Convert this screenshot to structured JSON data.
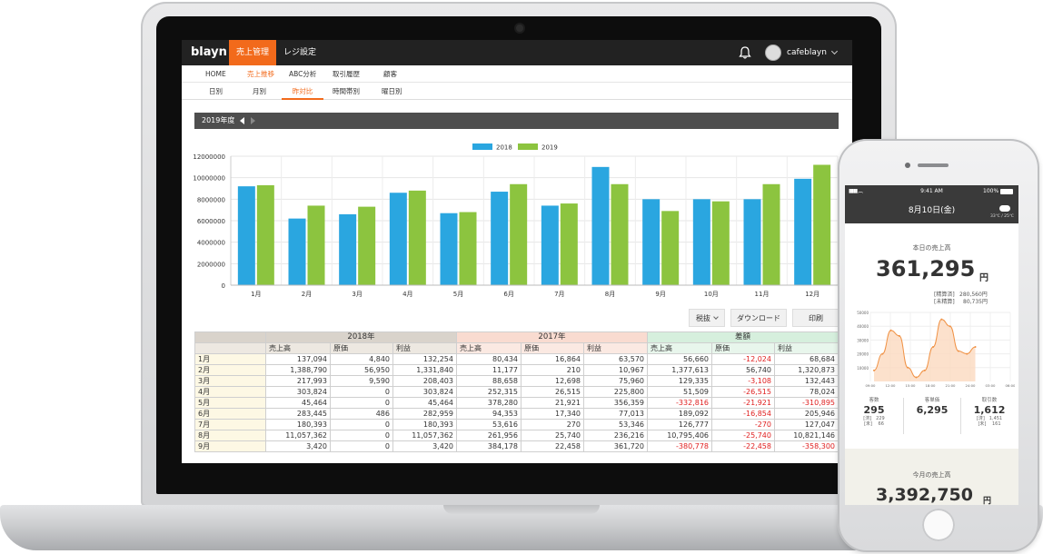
{
  "app": {
    "logo": "blayn",
    "top_tabs": [
      {
        "label": "売上管理",
        "active": true
      },
      {
        "label": "レジ設定",
        "active": false
      }
    ],
    "user_name": "cafeblayn"
  },
  "nav_primary": [
    {
      "label": "HOME"
    },
    {
      "label": "売上推移",
      "active": true
    },
    {
      "label": "ABC分析"
    },
    {
      "label": "取引履歴"
    },
    {
      "label": "顧客"
    }
  ],
  "nav_secondary": [
    {
      "label": "日別"
    },
    {
      "label": "月別"
    },
    {
      "label": "昨対比",
      "active": true
    },
    {
      "label": "時間帯別"
    },
    {
      "label": "曜日別"
    }
  ],
  "year_selector": {
    "label": "2019年度"
  },
  "chart_data": {
    "type": "bar",
    "categories": [
      "1月",
      "2月",
      "3月",
      "4月",
      "5月",
      "6月",
      "7月",
      "8月",
      "9月",
      "10月",
      "11月",
      "12月"
    ],
    "series": [
      {
        "name": "2018",
        "color": "#2aa6e0",
        "values": [
          9200000,
          6200000,
          6600000,
          8600000,
          6700000,
          8700000,
          7400000,
          11000000,
          8000000,
          8000000,
          8000000,
          9900000
        ]
      },
      {
        "name": "2019",
        "color": "#8cc43f",
        "values": [
          9300000,
          7400000,
          7300000,
          8800000,
          6800000,
          9400000,
          7600000,
          9400000,
          6900000,
          7800000,
          9400000,
          11200000
        ]
      }
    ],
    "ylim": [
      0,
      12000000
    ],
    "yticks": [
      "0",
      "2000000",
      "4000000",
      "6000000",
      "8000000",
      "10000000",
      "12000000"
    ],
    "grid": true,
    "legend": "top"
  },
  "buttons": {
    "tax": "税抜",
    "download": "ダウンロード",
    "print": "印刷"
  },
  "table": {
    "groups": [
      "2018年",
      "2017年",
      "差額"
    ],
    "subheaders": [
      "売上高",
      "原価",
      "利益"
    ],
    "rows": [
      {
        "month": "1月",
        "cells": [
          "137,094",
          "4,840",
          "132,254",
          "80,434",
          "16,864",
          "63,570",
          "56,660",
          "-12,024",
          "68,684"
        ]
      },
      {
        "month": "2月",
        "cells": [
          "1,388,790",
          "56,950",
          "1,331,840",
          "11,177",
          "210",
          "10,967",
          "1,377,613",
          "56,740",
          "1,320,873"
        ]
      },
      {
        "month": "3月",
        "cells": [
          "217,993",
          "9,590",
          "208,403",
          "88,658",
          "12,698",
          "75,960",
          "129,335",
          "-3,108",
          "132,443"
        ]
      },
      {
        "month": "4月",
        "cells": [
          "303,824",
          "0",
          "303,824",
          "252,315",
          "26,515",
          "225,800",
          "51,509",
          "-26,515",
          "78,024"
        ]
      },
      {
        "month": "5月",
        "cells": [
          "45,464",
          "0",
          "45,464",
          "378,280",
          "21,921",
          "356,359",
          "-332,816",
          "-21,921",
          "-310,895"
        ]
      },
      {
        "month": "6月",
        "cells": [
          "283,445",
          "486",
          "282,959",
          "94,353",
          "17,340",
          "77,013",
          "189,092",
          "-16,854",
          "205,946"
        ]
      },
      {
        "month": "7月",
        "cells": [
          "180,393",
          "0",
          "180,393",
          "53,616",
          "270",
          "53,346",
          "126,777",
          "-270",
          "127,047"
        ]
      },
      {
        "month": "8月",
        "cells": [
          "11,057,362",
          "0",
          "11,057,362",
          "261,956",
          "25,740",
          "236,216",
          "10,795,406",
          "-25,740",
          "10,821,146"
        ]
      },
      {
        "month": "9月",
        "cells": [
          "3,420",
          "0",
          "3,420",
          "384,178",
          "22,458",
          "361,720",
          "-380,778",
          "-22,458",
          "-358,300"
        ]
      }
    ]
  },
  "phone": {
    "time": "9:41 AM",
    "battery": "100%",
    "date": "8月10日(金)",
    "weather_temp": "33℃ / 25℃",
    "today_title": "本日の売上高",
    "today_value": "361,295",
    "yen": "円",
    "settled_label": "[精算済]",
    "settled_value": "280,560円",
    "unsettled_label": "[未精算]",
    "unsettled_value": "80,735円",
    "area_chart": {
      "type": "area",
      "yticks": [
        "0",
        "10000",
        "20000",
        "30000",
        "40000",
        "50000"
      ],
      "xticks": [
        "09:00",
        "12:00",
        "15:00",
        "18:00",
        "21:00",
        "24:00",
        "03:00",
        "06:00"
      ],
      "ylim": [
        0,
        50000
      ],
      "values": [
        8000,
        20000,
        37000,
        33000,
        10000,
        3000,
        8000,
        25000,
        45000,
        40000,
        22000,
        20000,
        25000
      ]
    },
    "stats": [
      {
        "label": "客数",
        "value": "295",
        "sub1": "[済]　229",
        "sub2": "[未]　 66"
      },
      {
        "label": "客単価",
        "value": "6,295",
        "sub1": "",
        "sub2": ""
      },
      {
        "label": "取引数",
        "value": "1,612",
        "sub1": "[済]　1,451",
        "sub2": "[未]　 161"
      }
    ],
    "month_title": "今月の売上高",
    "month_value": "3,392,750"
  }
}
